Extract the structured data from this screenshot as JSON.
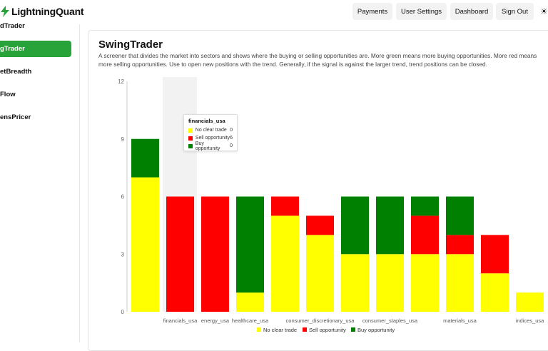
{
  "app": {
    "brand": "LightningQuant"
  },
  "header": {
    "buttons": [
      "Payments",
      "User Settings",
      "Dashboard",
      "Sign Out"
    ],
    "theme_icon": "sun-icon"
  },
  "sidebar": {
    "items": [
      {
        "label": "dTrader",
        "active": false
      },
      {
        "label": "gTrader",
        "active": true
      },
      {
        "label": "etBreadth",
        "active": false
      },
      {
        "label": "Flow",
        "active": false
      },
      {
        "label": "ensPricer",
        "active": false
      }
    ]
  },
  "main": {
    "title": "SwingTrader",
    "description": "A screener that divides the market into sectors and shows where the buying or selling opportunities are. More green means more buying opportunities. More red means more selling opportunities. Use to open new positions with the trend. Generally, if the signal is against the larger trend, trend positions can be closed."
  },
  "colors": {
    "accent": "#27a33a",
    "no_clear": "#ffff00",
    "sell": "#ff0000",
    "buy": "#008000"
  },
  "tooltip": {
    "title": "financials_usa",
    "rows": [
      {
        "label": "No clear trade",
        "value": "0"
      },
      {
        "label": "Sell opportunity",
        "value": "6"
      },
      {
        "label": "Buy opportunity",
        "value": "0"
      }
    ]
  },
  "chart_data": {
    "type": "bar",
    "stacked": true,
    "categories": [
      "",
      "financials_usa",
      "energy_usa",
      "healthcare_usa",
      "",
      "consumer_discretionary_usa",
      "",
      "consumer_staples_usa",
      "",
      "materials_usa",
      "",
      "indices_usa"
    ],
    "series": [
      {
        "name": "No clear trade",
        "color": "#ffff00",
        "values": [
          7,
          0,
          0,
          1,
          5,
          4,
          3,
          3,
          3,
          3,
          2,
          1
        ]
      },
      {
        "name": "Sell opportunity",
        "color": "#ff0000",
        "values": [
          0,
          6,
          6,
          0,
          1,
          1,
          0,
          0,
          2,
          1,
          2,
          0
        ]
      },
      {
        "name": "Buy opportunity",
        "color": "#008000",
        "values": [
          2,
          0,
          0,
          5,
          0,
          0,
          3,
          3,
          1,
          2,
          0,
          0
        ]
      }
    ],
    "yticks": [
      0,
      3,
      6,
      9,
      12
    ],
    "ylim": [
      0,
      12
    ],
    "highlighted_index": 1,
    "legend_position": "bottom"
  }
}
